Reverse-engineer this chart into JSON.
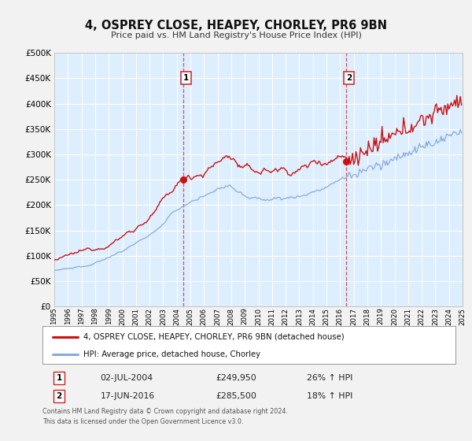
{
  "title": "4, OSPREY CLOSE, HEAPEY, CHORLEY, PR6 9BN",
  "subtitle": "Price paid vs. HM Land Registry's House Price Index (HPI)",
  "fig_bg_color": "#f2f2f2",
  "plot_bg_color": "#ddeeff",
  "grid_color": "#ffffff",
  "year_start": 1995,
  "year_end": 2025,
  "ylim": [
    0,
    500000
  ],
  "yticks": [
    0,
    50000,
    100000,
    150000,
    200000,
    250000,
    300000,
    350000,
    400000,
    450000,
    500000
  ],
  "ytick_labels": [
    "£0",
    "£50K",
    "£100K",
    "£150K",
    "£200K",
    "£250K",
    "£300K",
    "£350K",
    "£400K",
    "£450K",
    "£500K"
  ],
  "sale1_year": 2004.5,
  "sale1_price": 249950,
  "sale2_year": 2016.46,
  "sale2_price": 285500,
  "red_line_color": "#cc1111",
  "blue_line_color": "#88aadd",
  "marker_color": "#cc1111",
  "vline_color": "#dd3333",
  "legend1_label": "4, OSPREY CLOSE, HEAPEY, CHORLEY, PR6 9BN (detached house)",
  "legend2_label": "HPI: Average price, detached house, Chorley",
  "annotation1_date": "02-JUL-2004",
  "annotation1_price": "£249,950",
  "annotation1_hpi": "26% ↑ HPI",
  "annotation2_date": "17-JUN-2016",
  "annotation2_price": "£285,500",
  "annotation2_hpi": "18% ↑ HPI",
  "footer": "Contains HM Land Registry data © Crown copyright and database right 2024.\nThis data is licensed under the Open Government Licence v3.0."
}
